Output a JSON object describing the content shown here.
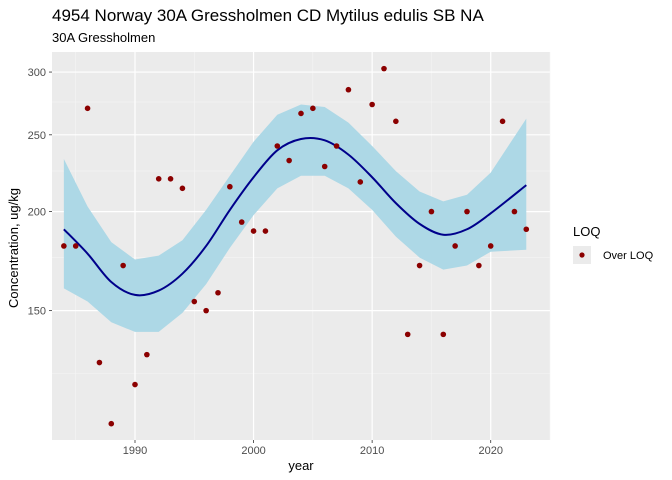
{
  "chart_data": {
    "type": "scatter",
    "title": "4954 Norway 30A Gressholmen CD Mytilus edulis SB NA",
    "subtitle": "30A Gressholmen",
    "xlabel": "year",
    "ylabel": "Concentration, ug/kg",
    "xlim": [
      1983,
      2025
    ],
    "ylim": [
      103,
      318
    ],
    "y_scale": "log",
    "x_ticks": [
      1990,
      2000,
      2010,
      2020
    ],
    "x_minor_ticks": [
      1985,
      1995,
      2005,
      2015,
      2025
    ],
    "y_ticks": [
      150,
      200,
      250,
      300
    ],
    "y_minor_ticks": [
      125,
      175,
      225,
      275
    ],
    "grid": true,
    "legend": {
      "title": "LOQ",
      "placement": "right",
      "entries": [
        {
          "label": "Over LOQ",
          "color": "#8b0000"
        }
      ]
    },
    "colors": {
      "points": "#8b0000",
      "trend": "#00008b",
      "band": "#add8e6",
      "panel": "#ebebeb"
    },
    "points": [
      {
        "x": 1984,
        "y": 181
      },
      {
        "x": 1985,
        "y": 181
      },
      {
        "x": 1986,
        "y": 270
      },
      {
        "x": 1987,
        "y": 129
      },
      {
        "x": 1988,
        "y": 108
      },
      {
        "x": 1989,
        "y": 171
      },
      {
        "x": 1990,
        "y": 121
      },
      {
        "x": 1991,
        "y": 132
      },
      {
        "x": 1992,
        "y": 220
      },
      {
        "x": 1993,
        "y": 220
      },
      {
        "x": 1994,
        "y": 214
      },
      {
        "x": 1995,
        "y": 154
      },
      {
        "x": 1996,
        "y": 150
      },
      {
        "x": 1997,
        "y": 158
      },
      {
        "x": 1998,
        "y": 215
      },
      {
        "x": 1999,
        "y": 194
      },
      {
        "x": 2000,
        "y": 189
      },
      {
        "x": 2001,
        "y": 189
      },
      {
        "x": 2002,
        "y": 242
      },
      {
        "x": 2003,
        "y": 232
      },
      {
        "x": 2004,
        "y": 266
      },
      {
        "x": 2005,
        "y": 270
      },
      {
        "x": 2006,
        "y": 228
      },
      {
        "x": 2007,
        "y": 242
      },
      {
        "x": 2008,
        "y": 285
      },
      {
        "x": 2009,
        "y": 218
      },
      {
        "x": 2010,
        "y": 273
      },
      {
        "x": 2011,
        "y": 303
      },
      {
        "x": 2012,
        "y": 260
      },
      {
        "x": 2013,
        "y": 140
      },
      {
        "x": 2014,
        "y": 171
      },
      {
        "x": 2015,
        "y": 200
      },
      {
        "x": 2016,
        "y": 140
      },
      {
        "x": 2017,
        "y": 181
      },
      {
        "x": 2018,
        "y": 200
      },
      {
        "x": 2019,
        "y": 171
      },
      {
        "x": 2020,
        "y": 181
      },
      {
        "x": 2021,
        "y": 260
      },
      {
        "x": 2022,
        "y": 200
      },
      {
        "x": 2023,
        "y": 190
      }
    ],
    "trend": [
      {
        "x": 1984,
        "y": 190,
        "lo": 160,
        "hi": 233
      },
      {
        "x": 1986,
        "y": 177,
        "lo": 154,
        "hi": 203
      },
      {
        "x": 1988,
        "y": 163,
        "lo": 145,
        "hi": 183
      },
      {
        "x": 1990,
        "y": 157,
        "lo": 141,
        "hi": 174
      },
      {
        "x": 1992,
        "y": 159,
        "lo": 141,
        "hi": 176
      },
      {
        "x": 1994,
        "y": 167,
        "lo": 149,
        "hi": 184
      },
      {
        "x": 1996,
        "y": 181,
        "lo": 162,
        "hi": 201
      },
      {
        "x": 1998,
        "y": 201,
        "lo": 180,
        "hi": 222
      },
      {
        "x": 2000,
        "y": 221,
        "lo": 198,
        "hi": 245
      },
      {
        "x": 2002,
        "y": 239,
        "lo": 214,
        "hi": 265
      },
      {
        "x": 2004,
        "y": 247,
        "lo": 222,
        "hi": 273
      },
      {
        "x": 2006,
        "y": 246,
        "lo": 222,
        "hi": 271
      },
      {
        "x": 2008,
        "y": 236,
        "lo": 214,
        "hi": 259
      },
      {
        "x": 2010,
        "y": 221,
        "lo": 201,
        "hi": 242
      },
      {
        "x": 2012,
        "y": 205,
        "lo": 186,
        "hi": 225
      },
      {
        "x": 2014,
        "y": 193,
        "lo": 175,
        "hi": 212
      },
      {
        "x": 2016,
        "y": 187,
        "lo": 169,
        "hi": 206
      },
      {
        "x": 2018,
        "y": 190,
        "lo": 171,
        "hi": 210
      },
      {
        "x": 2020,
        "y": 199,
        "lo": 178,
        "hi": 224
      },
      {
        "x": 2023,
        "y": 216,
        "lo": 179,
        "hi": 262
      }
    ]
  }
}
